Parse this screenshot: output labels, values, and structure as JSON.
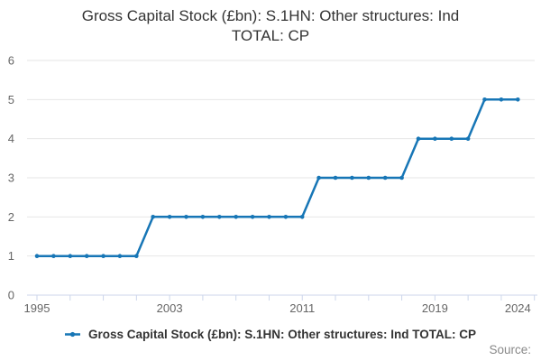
{
  "title_lines": [
    "Gross Capital Stock (£bn): S.1HN: Other structures: Ind",
    "TOTAL: CP"
  ],
  "labels": {
    "source": "Source:"
  },
  "colors": {
    "line": "#1776b6",
    "grid": "#e6e6e6",
    "axis": "#ccd6eb",
    "text_muted": "#666666",
    "text_dark": "#333333"
  },
  "chart_data": {
    "type": "line",
    "title": "Gross Capital Stock (£bn): S.1HN: Other structures: Ind TOTAL: CP",
    "x": [
      1995,
      1996,
      1997,
      1998,
      1999,
      2000,
      2001,
      2002,
      2003,
      2004,
      2005,
      2006,
      2007,
      2008,
      2009,
      2010,
      2011,
      2012,
      2013,
      2014,
      2015,
      2016,
      2017,
      2018,
      2019,
      2020,
      2021,
      2022,
      2023,
      2024
    ],
    "series": [
      {
        "name": "Gross Capital Stock (£bn): S.1HN: Other structures: Ind TOTAL: CP",
        "values": [
          1,
          1,
          1,
          1,
          1,
          1,
          1,
          2,
          2,
          2,
          2,
          2,
          2,
          2,
          2,
          2,
          2,
          3,
          3,
          3,
          3,
          3,
          3,
          4,
          4,
          4,
          4,
          5,
          5,
          5
        ]
      }
    ],
    "xlabel": "",
    "ylabel": "",
    "ylim": [
      0,
      6
    ],
    "yticks": [
      0,
      1,
      2,
      3,
      4,
      5,
      6
    ],
    "xtick_labels": [
      1995,
      2003,
      2011,
      2019,
      2024
    ],
    "xtick_interval": 2,
    "axis_end_year": 2025,
    "grid": true,
    "marker": "circle",
    "legend_position": "bottom"
  }
}
